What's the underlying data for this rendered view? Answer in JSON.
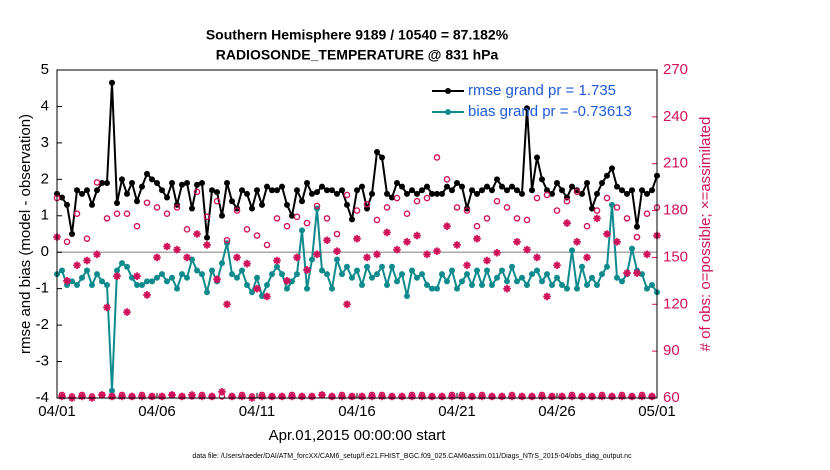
{
  "chart_data": {
    "type": "line",
    "title": "Southern Hemisphere 9189 / 10540 = 87.182%",
    "subtitle": "RADIOSONDE_TEMPERATURE @ 831 hPa",
    "xlabel": "Apr.01,2015 00:00:00 start",
    "ylabel": "rmse and bias (model - observation)",
    "y2label": "# of obs: o=possible; ×=assimilated",
    "footnote": "data file: /Users/raeder/DAI/ATM_forcXX/CAM6_setup/f.e21.FHIST_BGC.f09_025.CAM6assim.011/Diags_NTrS_2015-04/obs_diag_output.nc",
    "xlim": [
      0,
      30
    ],
    "xticks": [
      {
        "value": 0,
        "label": "04/01"
      },
      {
        "value": 5,
        "label": "04/06"
      },
      {
        "value": 10,
        "label": "04/11"
      },
      {
        "value": 15,
        "label": "04/16"
      },
      {
        "value": 20,
        "label": "04/21"
      },
      {
        "value": 25,
        "label": "04/26"
      },
      {
        "value": 30,
        "label": "05/01"
      }
    ],
    "ylim": [
      -4,
      5
    ],
    "yticks": [
      -4,
      -3,
      -2,
      -1,
      0,
      1,
      2,
      3,
      4,
      5
    ],
    "y2lim": [
      60,
      270
    ],
    "y2ticks": [
      60,
      90,
      120,
      150,
      180,
      210,
      240,
      270
    ],
    "zero_line": true,
    "x": [
      0,
      0.25,
      0.5,
      0.75,
      1,
      1.25,
      1.5,
      1.75,
      2,
      2.25,
      2.5,
      2.75,
      3,
      3.25,
      3.5,
      3.75,
      4,
      4.25,
      4.5,
      4.75,
      5,
      5.25,
      5.5,
      5.75,
      6,
      6.25,
      6.5,
      6.75,
      7,
      7.25,
      7.5,
      7.75,
      8,
      8.25,
      8.5,
      8.75,
      9,
      9.25,
      9.5,
      9.75,
      10,
      10.25,
      10.5,
      10.75,
      11,
      11.25,
      11.5,
      11.75,
      12,
      12.25,
      12.5,
      12.75,
      13,
      13.25,
      13.5,
      13.75,
      14,
      14.25,
      14.5,
      14.75,
      15,
      15.25,
      15.5,
      15.75,
      16,
      16.25,
      16.5,
      16.75,
      17,
      17.25,
      17.5,
      17.75,
      18,
      18.25,
      18.5,
      18.75,
      19,
      19.25,
      19.5,
      19.75,
      20,
      20.25,
      20.5,
      20.75,
      21,
      21.25,
      21.5,
      21.75,
      22,
      22.25,
      22.5,
      22.75,
      23,
      23.25,
      23.5,
      23.75,
      24,
      24.25,
      24.5,
      24.75,
      25,
      25.25,
      25.5,
      25.75,
      26,
      26.25,
      26.5,
      26.75,
      27,
      27.25,
      27.5,
      27.75,
      28,
      28.25,
      28.5,
      28.75,
      29,
      29.25,
      29.5,
      29.75,
      30
    ],
    "series": [
      {
        "name": "rmse grand pr = 1.735",
        "color": "#000000",
        "marker": "dot",
        "line": true,
        "values": [
          1.6,
          1.5,
          1.3,
          0.5,
          1.7,
          1.6,
          1.7,
          1.3,
          1.7,
          1.9,
          1.9,
          4.65,
          1.35,
          2.0,
          1.6,
          1.9,
          1.4,
          1.8,
          2.15,
          2.0,
          1.9,
          1.7,
          1.5,
          1.9,
          1.3,
          1.85,
          1.9,
          1.2,
          1.85,
          1.9,
          0.4,
          1.7,
          1.65,
          1.0,
          1.9,
          1.4,
          1.2,
          1.7,
          1.6,
          1.2,
          1.7,
          1.3,
          1.8,
          1.7,
          1.7,
          1.8,
          1.3,
          1.0,
          1.7,
          1.4,
          1.9,
          1.6,
          1.65,
          1.8,
          1.7,
          1.7,
          1.6,
          1.7,
          1.3,
          0.9,
          1.7,
          1.8,
          1.2,
          1.6,
          2.75,
          2.6,
          1.6,
          1.5,
          1.9,
          1.8,
          1.6,
          1.7,
          1.6,
          1.7,
          1.8,
          1.6,
          1.6,
          1.6,
          1.8,
          1.7,
          1.9,
          1.8,
          1.2,
          1.7,
          1.6,
          1.7,
          1.8,
          1.7,
          2.0,
          1.8,
          1.7,
          1.8,
          1.7,
          1.6,
          3.95,
          1.7,
          2.6,
          2.0,
          1.7,
          1.6,
          1.9,
          1.7,
          1.5,
          1.8,
          1.7,
          1.6,
          1.9,
          1.2,
          1.6,
          1.9,
          2.1,
          2.3,
          1.8,
          1.7,
          1.6,
          1.7,
          0.7,
          1.7,
          1.6,
          1.7,
          2.1
        ]
      },
      {
        "name": "bias grand pr = -0.73613",
        "color": "#0f8b8d",
        "marker": "dot",
        "line": true,
        "values": [
          -0.6,
          -0.5,
          -0.9,
          -0.8,
          -0.9,
          -0.7,
          -0.5,
          -0.9,
          -0.6,
          -0.8,
          -0.9,
          -3.8,
          -0.5,
          -0.3,
          -0.4,
          -0.7,
          -0.9,
          -0.9,
          -0.8,
          -0.8,
          -0.7,
          -0.6,
          -0.8,
          -0.7,
          -1.0,
          -0.6,
          -0.7,
          -0.2,
          -0.5,
          -0.6,
          -1.1,
          -0.5,
          -0.8,
          -0.3,
          0.25,
          -0.6,
          -0.7,
          -0.5,
          -0.9,
          -1.1,
          -0.7,
          -1.2,
          -0.9,
          -0.6,
          -0.4,
          -0.6,
          -1.0,
          -0.8,
          -0.6,
          0.6,
          -1.0,
          -0.2,
          1.2,
          -0.5,
          -0.6,
          -1.0,
          -0.2,
          -0.6,
          -0.4,
          -0.7,
          -0.5,
          -0.9,
          -0.4,
          -0.7,
          -0.6,
          -0.4,
          -0.9,
          -0.4,
          -0.8,
          -0.6,
          -1.2,
          -0.5,
          -0.7,
          -0.6,
          -0.9,
          -1.0,
          -1.0,
          -0.6,
          -0.8,
          -0.5,
          -1.0,
          -0.8,
          -0.6,
          -0.9,
          -0.5,
          -0.9,
          -0.5,
          -0.9,
          -0.7,
          -0.5,
          -0.8,
          -0.4,
          -0.8,
          -0.7,
          -0.9,
          -0.6,
          -0.5,
          -0.8,
          -0.6,
          -0.9,
          -0.7,
          -0.9,
          -1.0,
          0.05,
          -1.0,
          -0.4,
          -0.9,
          -0.7,
          -0.9,
          -0.6,
          -0.4,
          1.3,
          -0.7,
          -0.8,
          -0.6,
          0.1,
          -0.5,
          -0.6,
          -1.0,
          -0.9,
          -1.1
        ]
      },
      {
        "color": "#d0105a",
        "marker": "circle",
        "line": false,
        "axis": "y2",
        "values": [
          188,
          62,
          160,
          61,
          178,
          62,
          162,
          61,
          198,
          62,
          175,
          61,
          178,
          62,
          178,
          61,
          170,
          62,
          185,
          61,
          182,
          61,
          178,
          62,
          182,
          61,
          168,
          61,
          192,
          62,
          176,
          61,
          186,
          61,
          161,
          61,
          180,
          62,
          168,
          61,
          164,
          62,
          158,
          61,
          175,
          61,
          170,
          62,
          176,
          61,
          172,
          61,
          183,
          62,
          175,
          61,
          165,
          62,
          190,
          61,
          180,
          61,
          184,
          62,
          174,
          62,
          182,
          61,
          188,
          61,
          178,
          62,
          186,
          62,
          188,
          61,
          214,
          61,
          200,
          62,
          182,
          62,
          180,
          61,
          170,
          62,
          175,
          61,
          186,
          61,
          182,
          62,
          175,
          61,
          174,
          61,
          188,
          62,
          190,
          61,
          180,
          61,
          186,
          62,
          192,
          61,
          170,
          61,
          180,
          62,
          188,
          61,
          182,
          62,
          175,
          61,
          163,
          62,
          178,
          61,
          182
        ]
      },
      {
        "color": "#d0105a",
        "marker": "asterisk",
        "line": false,
        "axis": "y2",
        "values": [
          163,
          61,
          135,
          60,
          145,
          61,
          148,
          60,
          152,
          62,
          118,
          61,
          138,
          61,
          115,
          61,
          138,
          61,
          126,
          61,
          150,
          61,
          157,
          62,
          155,
          61,
          150,
          62,
          165,
          61,
          158,
          61,
          136,
          64,
          120,
          61,
          150,
          61,
          146,
          60,
          130,
          61,
          125,
          61,
          148,
          61,
          135,
          61,
          150,
          61,
          142,
          61,
          152,
          62,
          161,
          61,
          154,
          61,
          120,
          61,
          162,
          61,
          150,
          61,
          152,
          61,
          166,
          61,
          155,
          61,
          160,
          61,
          164,
          61,
          152,
          61,
          154,
          61,
          170,
          61,
          158,
          61,
          145,
          61,
          162,
          61,
          148,
          61,
          153,
          61,
          130,
          61,
          160,
          61,
          155,
          61,
          150,
          61,
          125,
          61,
          145,
          61,
          172,
          61,
          160,
          61,
          150,
          61,
          175,
          61,
          165,
          61,
          160,
          61,
          140,
          61,
          140,
          61,
          152,
          61,
          164
        ]
      }
    ]
  }
}
